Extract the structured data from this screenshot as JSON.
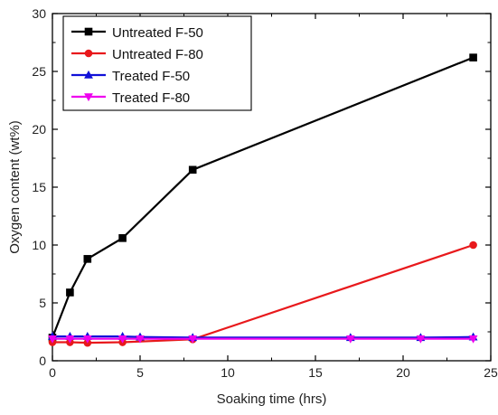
{
  "chart_data": {
    "type": "line",
    "title": "",
    "xlabel": "Soaking time (hrs)",
    "ylabel": "Oxygen content (wt%)",
    "xlim": [
      0,
      25
    ],
    "ylim": [
      0,
      30
    ],
    "xticks": [
      "0",
      "5",
      "10",
      "15",
      "20",
      "25"
    ],
    "yticks": [
      "0",
      "5",
      "10",
      "15",
      "20",
      "25",
      "30"
    ],
    "grid": false,
    "legend_position": "top-left",
    "series": [
      {
        "name": "Untreated F-50",
        "color": "#000000",
        "marker": "square",
        "x": [
          0,
          1,
          2,
          4,
          8,
          24
        ],
        "y": [
          2.0,
          5.9,
          8.8,
          10.6,
          16.5,
          26.2
        ]
      },
      {
        "name": "Untreated F-80",
        "color": "#e8191c",
        "marker": "circle",
        "x": [
          0,
          1,
          2,
          4,
          8,
          24
        ],
        "y": [
          1.6,
          1.6,
          1.55,
          1.6,
          1.85,
          10.0
        ]
      },
      {
        "name": "Treated F-50",
        "color": "#1010d8",
        "marker": "triangle-up",
        "x": [
          0,
          1,
          2,
          4,
          5,
          8,
          17,
          21,
          24
        ],
        "y": [
          2.1,
          2.1,
          2.1,
          2.1,
          2.05,
          2.0,
          2.0,
          2.0,
          2.05
        ]
      },
      {
        "name": "Treated F-80",
        "color": "#ee00ee",
        "marker": "triangle-down",
        "x": [
          0,
          1,
          2,
          4,
          5,
          8,
          17,
          21,
          24
        ],
        "y": [
          1.9,
          1.9,
          1.9,
          1.9,
          1.9,
          1.9,
          1.9,
          1.9,
          1.9
        ]
      }
    ]
  }
}
